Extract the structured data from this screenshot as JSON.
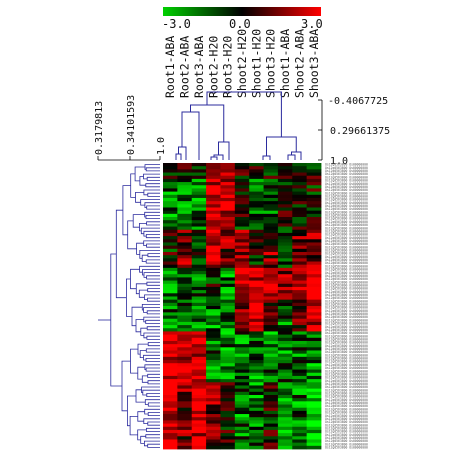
{
  "colorbar": {
    "min_label": "-3.0",
    "mid_label": "0.0",
    "max_label": "3.0",
    "low_color": "#00d000",
    "mid_color": "#000000",
    "high_color": "#ff0000"
  },
  "columns": [
    "Root1-ABA",
    "Root2-ABA",
    "Root3-ABA",
    "Root2-H20",
    "Root3-H20",
    "Shoot2-H20",
    "Shoot1-H20",
    "Shoot3-H20",
    "Shoot1-ABA",
    "Shoot2-ABA",
    "Shoot3-ABA"
  ],
  "column_scale": [
    "-0.4067725",
    "0.29661375",
    "1.0"
  ],
  "row_scale": [
    "0.3179813",
    "0.34101593",
    "1.0"
  ],
  "row_label_text": "Os12g0563800 Os00000000",
  "row_count": 90,
  "heatmap_colors": {
    "green": "#00ff00",
    "red": "#ff0000",
    "black": "#000000",
    "dendrogram": "#2b2b9e"
  }
}
